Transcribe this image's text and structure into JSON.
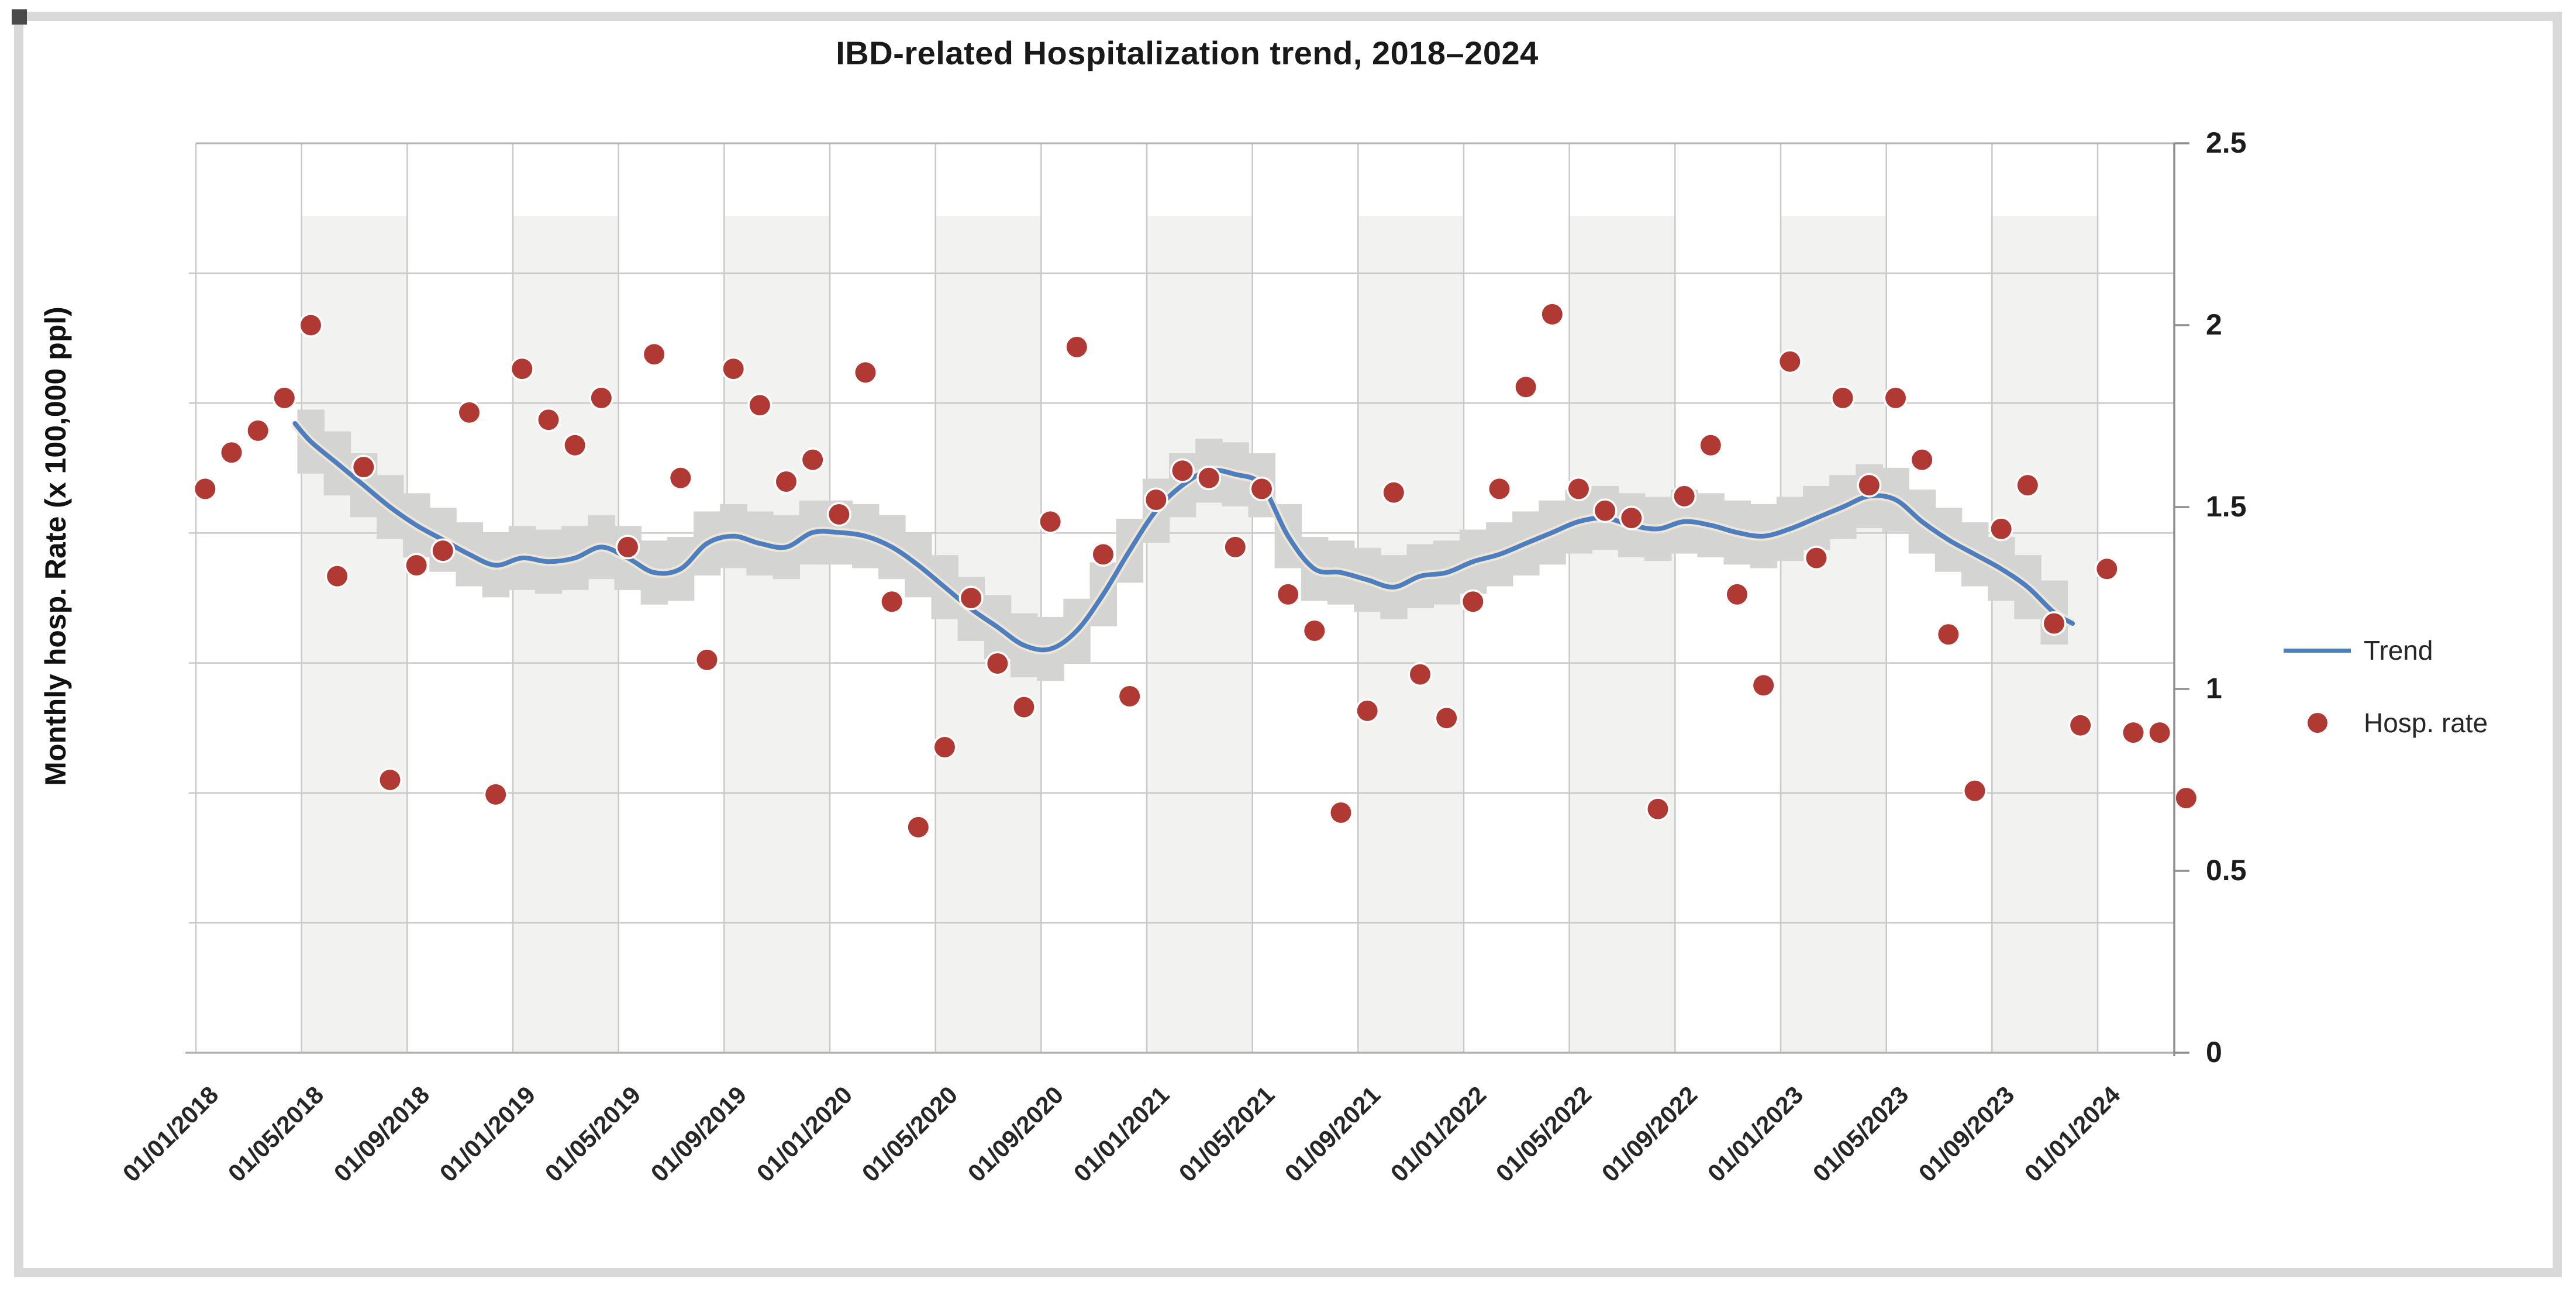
{
  "title": "IBD-related Hospitalization trend, 2018–2024",
  "y_axis_title": "Monthly hosp. Rate (x 100,000 ppl)",
  "legend": {
    "trend_label": "Trend",
    "points_label": "Hosp. rate"
  },
  "colors": {
    "trend_line": "#4d7ec0",
    "trend_casing": "#efe7d6",
    "confidence_band": "#d4d4d3",
    "dot": "#b03a33",
    "dot_halo": "#ffffff",
    "stripe": "#f2f2f1",
    "gridline": "#c9c9c9",
    "plot_border": "#b3b3b3",
    "right_axis": "#8f8f8f",
    "frame": "#d9d9d9"
  },
  "chart_data": {
    "type": "scatter",
    "title": "IBD-related Hospitalization trend, 2018–2024",
    "xlabel": "",
    "ylabel": "Monthly hosp. Rate (x 100,000 ppl)",
    "ylim": [
      0,
      2.5
    ],
    "y_tick_values": [
      0,
      0.5,
      1,
      1.5,
      2,
      2.5
    ],
    "y_tick_labels": [
      "0",
      "0.5",
      "1",
      "1.5",
      "2",
      "2.5"
    ],
    "x_tick_labels": [
      "01/01/2018",
      "01/05/2018",
      "01/09/2018",
      "01/01/2019",
      "01/05/2019",
      "01/09/2019",
      "01/01/2020",
      "01/05/2020",
      "01/09/2020",
      "01/01/2021",
      "01/05/2021",
      "01/09/2021",
      "01/01/2022",
      "01/05/2022",
      "01/09/2022",
      "01/01/2023",
      "01/05/2023",
      "01/09/2023",
      "01/01/2024"
    ],
    "x_months_per_tick": 4,
    "x_total_months": 74.9,
    "grid": {
      "horizontal_divisions": 7,
      "vertical_every_months": 4,
      "alternating_column_shading_top_value": 2.3
    },
    "legend_position": "right",
    "series": [
      {
        "name": "Hosp. rate",
        "style": "points",
        "dates": [
          "01/01/2018",
          "01/02/2018",
          "01/03/2018",
          "01/04/2018",
          "01/05/2018",
          "01/06/2018",
          "01/07/2018",
          "01/08/2018",
          "01/09/2018",
          "01/10/2018",
          "01/11/2018",
          "01/12/2018",
          "01/01/2019",
          "01/02/2019",
          "01/03/2019",
          "01/04/2019",
          "01/05/2019",
          "01/06/2019",
          "01/07/2019",
          "01/08/2019",
          "01/09/2019",
          "01/10/2019",
          "01/11/2019",
          "01/12/2019",
          "01/01/2020",
          "01/02/2020",
          "01/03/2020",
          "01/04/2020",
          "01/05/2020",
          "01/06/2020",
          "01/07/2020",
          "01/08/2020",
          "01/09/2020",
          "01/10/2020",
          "01/11/2020",
          "01/12/2020",
          "01/01/2021",
          "01/02/2021",
          "01/03/2021",
          "01/04/2021",
          "01/05/2021",
          "01/06/2021",
          "01/07/2021",
          "01/08/2021",
          "01/09/2021",
          "01/10/2021",
          "01/11/2021",
          "01/12/2021",
          "01/01/2022",
          "01/02/2022",
          "01/03/2022",
          "01/04/2022",
          "01/05/2022",
          "01/06/2022",
          "01/07/2022",
          "01/08/2022",
          "01/09/2022",
          "01/10/2022",
          "01/11/2022",
          "01/12/2022",
          "01/01/2023",
          "01/02/2023",
          "01/03/2023",
          "01/04/2023",
          "01/05/2023",
          "01/06/2023",
          "01/07/2023",
          "01/08/2023",
          "01/09/2023",
          "01/10/2023",
          "01/11/2023",
          "01/12/2023",
          "01/01/2024",
          "01/02/2024",
          "01/03/2024",
          "01/04/2024"
        ],
        "values": [
          1.55,
          1.65,
          1.71,
          1.8,
          2.0,
          1.31,
          1.61,
          0.75,
          1.34,
          1.38,
          1.76,
          0.71,
          1.88,
          1.74,
          1.67,
          1.8,
          1.39,
          1.92,
          1.58,
          1.08,
          1.88,
          1.78,
          1.57,
          1.63,
          1.48,
          1.87,
          1.24,
          0.62,
          0.84,
          1.25,
          1.07,
          0.95,
          1.46,
          1.94,
          1.37,
          0.98,
          1.52,
          1.6,
          1.58,
          1.39,
          1.55,
          1.26,
          1.16,
          0.66,
          0.94,
          1.54,
          1.04,
          0.92,
          1.24,
          1.55,
          1.83,
          2.03,
          1.55,
          1.49,
          1.47,
          0.67,
          1.53,
          1.67,
          1.26,
          1.01,
          1.9,
          1.36,
          1.8,
          1.56,
          1.8,
          1.63,
          1.15,
          0.72,
          1.44,
          1.56,
          1.18,
          0.9,
          1.33,
          0.88,
          0.88,
          0.7
        ]
      },
      {
        "name": "Trend",
        "style": "smooth_line_with_band",
        "band_halfwidth": 0.088,
        "points": [
          [
            3.4,
            1.73
          ],
          [
            4,
            1.68
          ],
          [
            5,
            1.62
          ],
          [
            6,
            1.56
          ],
          [
            7,
            1.5
          ],
          [
            8,
            1.45
          ],
          [
            9,
            1.41
          ],
          [
            10,
            1.37
          ],
          [
            11,
            1.34
          ],
          [
            12,
            1.36
          ],
          [
            13,
            1.35
          ],
          [
            14,
            1.36
          ],
          [
            15,
            1.39
          ],
          [
            16,
            1.36
          ],
          [
            17,
            1.32
          ],
          [
            18,
            1.33
          ],
          [
            19,
            1.4
          ],
          [
            20,
            1.42
          ],
          [
            21,
            1.4
          ],
          [
            22,
            1.39
          ],
          [
            23,
            1.43
          ],
          [
            24,
            1.43
          ],
          [
            25,
            1.42
          ],
          [
            26,
            1.39
          ],
          [
            27,
            1.34
          ],
          [
            28,
            1.28
          ],
          [
            29,
            1.22
          ],
          [
            30,
            1.17
          ],
          [
            31,
            1.12
          ],
          [
            32,
            1.11
          ],
          [
            33,
            1.16
          ],
          [
            34,
            1.26
          ],
          [
            35,
            1.38
          ],
          [
            36,
            1.49
          ],
          [
            37,
            1.56
          ],
          [
            38,
            1.6
          ],
          [
            39,
            1.59
          ],
          [
            40,
            1.56
          ],
          [
            41,
            1.42
          ],
          [
            42,
            1.33
          ],
          [
            43,
            1.32
          ],
          [
            44,
            1.3
          ],
          [
            45,
            1.28
          ],
          [
            46,
            1.31
          ],
          [
            47,
            1.32
          ],
          [
            48,
            1.35
          ],
          [
            49,
            1.37
          ],
          [
            50,
            1.4
          ],
          [
            51,
            1.43
          ],
          [
            52,
            1.46
          ],
          [
            53,
            1.47
          ],
          [
            54,
            1.45
          ],
          [
            55,
            1.44
          ],
          [
            56,
            1.46
          ],
          [
            57,
            1.45
          ],
          [
            58,
            1.43
          ],
          [
            59,
            1.42
          ],
          [
            60,
            1.44
          ],
          [
            61,
            1.47
          ],
          [
            62,
            1.5
          ],
          [
            63,
            1.53
          ],
          [
            64,
            1.52
          ],
          [
            65,
            1.46
          ],
          [
            66,
            1.41
          ],
          [
            67,
            1.37
          ],
          [
            68,
            1.33
          ],
          [
            69,
            1.28
          ],
          [
            70,
            1.21
          ],
          [
            70.7,
            1.18
          ]
        ]
      }
    ]
  }
}
